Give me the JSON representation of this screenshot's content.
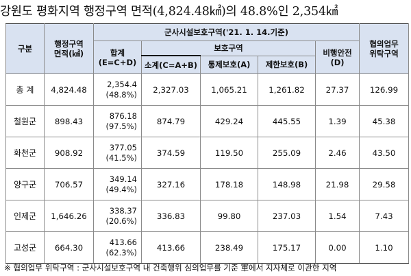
{
  "title": "강원도 평화지역 행정구역 면적(4,824.48㎢)의 48.8%인 2,354㎢",
  "headers": {
    "gubun": "구분",
    "area_line1": "행정구역",
    "area_line2": "면적(㎢)",
    "military": "군사시설보호구역('21. 1. 14.기준)",
    "total_line1": "합계",
    "total_line2": "(E=C+D)",
    "protection": "보호구역",
    "subtotal": "소계(C=A+B)",
    "control": "통제보호(A)",
    "restrict": "제한보호(B)",
    "flight_line1": "비행안전",
    "flight_line2": "(D)",
    "consult_line1": "협의업무",
    "consult_line2": "위탁구역"
  },
  "rows": [
    {
      "name": "총  계",
      "area": "4,824.48",
      "total": "2,354.4",
      "total_pct": "(48.8%)",
      "subtotal": "2,327.03",
      "control": "1,065.21",
      "restrict": "1,261.82",
      "flight": "27.37",
      "consult": "126.99"
    },
    {
      "name": "철원군",
      "area": "898.43",
      "total": "876.18",
      "total_pct": "(97.5%)",
      "subtotal": "874.79",
      "control": "429.24",
      "restrict": "445.55",
      "flight": "1.39",
      "consult": "45.38"
    },
    {
      "name": "화천군",
      "area": "908.92",
      "total": "377.05",
      "total_pct": "(41.5%)",
      "subtotal": "374.59",
      "control": "119.50",
      "restrict": "255.09",
      "flight": "2.46",
      "consult": "43.50"
    },
    {
      "name": "양구군",
      "area": "706.57",
      "total": "349.14",
      "total_pct": "(49.4%)",
      "subtotal": "327.16",
      "control": "178.18",
      "restrict": "148.98",
      "flight": "21.98",
      "consult": "29.58"
    },
    {
      "name": "인제군",
      "area": "1,646.26",
      "total": "338.37",
      "total_pct": "(20.6%)",
      "subtotal": "336.83",
      "control": "99.80",
      "restrict": "237.03",
      "flight": "1.54",
      "consult": "7.43"
    },
    {
      "name": "고성군",
      "area": "664.30",
      "total": "413.66",
      "total_pct": "(62.3%)",
      "subtotal": "413.66",
      "control": "238.49",
      "restrict": "175.17",
      "flight": "0.00",
      "consult": "1.10"
    }
  ],
  "footnote": "※ 협의업무 위탁구역 : 군사시설보호구역 내 건축행위 심의업무를 기준 軍에서 지자체로 이관한 지역",
  "colors": {
    "header_bg": "#d9e2f1",
    "grid_line": "#8a8a8a",
    "highlight_border": "#111111"
  }
}
